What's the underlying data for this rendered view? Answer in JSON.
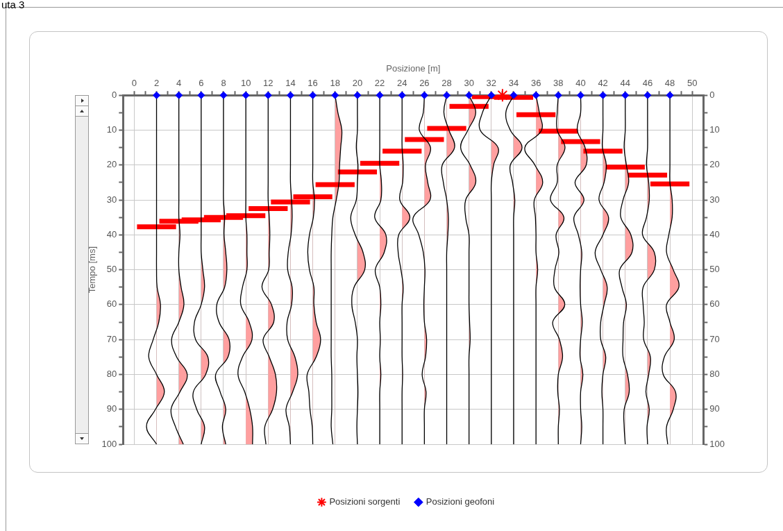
{
  "chart_data": {
    "type": "line",
    "xlabel": "Posizione [m]",
    "ylabel": "Tempo [ms]",
    "annotations": [
      "uta 3"
    ],
    "xlim": [
      -1,
      51
    ],
    "xticks": [
      0,
      {
        "value": 1,
        "label": null
      },
      2,
      {
        "value": 3,
        "label": null
      },
      4,
      {
        "value": 5,
        "label": null
      },
      6,
      {
        "value": 7,
        "label": null
      },
      8,
      {
        "value": 9,
        "label": null
      },
      10,
      {
        "value": 11,
        "label": null
      },
      12,
      {
        "value": 13,
        "label": null
      },
      14,
      {
        "value": 15,
        "label": null
      },
      16,
      {
        "value": 17,
        "label": null
      },
      18,
      {
        "value": 19,
        "label": null
      },
      20,
      {
        "value": 21,
        "label": null
      },
      22,
      {
        "value": 23,
        "label": null
      },
      24,
      {
        "value": 25,
        "label": null
      },
      26,
      {
        "value": 27,
        "label": null
      },
      28,
      {
        "value": 29,
        "label": null
      },
      30,
      {
        "value": 31,
        "label": null
      },
      32,
      {
        "value": 33,
        "label": null
      },
      34,
      {
        "value": 35,
        "label": null
      },
      36,
      {
        "value": 37,
        "label": null
      },
      38,
      {
        "value": 39,
        "label": null
      },
      40,
      {
        "value": 41,
        "label": null
      },
      42,
      {
        "value": 43,
        "label": null
      },
      44,
      {
        "value": 45,
        "label": null
      },
      46,
      {
        "value": 47,
        "label": null
      },
      48,
      {
        "value": 49,
        "label": null
      },
      50
    ],
    "ylim": [
      100,
      0
    ],
    "yticks": [
      0,
      {
        "value": 5,
        "label": null
      },
      10,
      {
        "value": 15,
        "label": null
      },
      20,
      {
        "value": 25,
        "label": null
      },
      30,
      {
        "value": 35,
        "label": null
      },
      40,
      {
        "value": 45,
        "label": null
      },
      50,
      {
        "value": 55,
        "label": null
      },
      60,
      {
        "value": 65,
        "label": null
      },
      70,
      {
        "value": 75,
        "label": null
      },
      80,
      {
        "value": 85,
        "label": null
      },
      90,
      {
        "value": 95,
        "label": null
      },
      100
    ],
    "y2lim": [
      100,
      0
    ],
    "y2ticks": [
      0,
      {
        "value": 5,
        "label": null
      },
      10,
      {
        "value": 15,
        "label": null
      },
      20,
      {
        "value": 25,
        "label": null
      },
      30,
      {
        "value": 35,
        "label": null
      },
      40,
      {
        "value": 45,
        "label": null
      },
      50,
      {
        "value": 55,
        "label": null
      },
      60,
      {
        "value": 65,
        "label": null
      },
      70,
      {
        "value": 75,
        "label": null
      },
      80,
      {
        "value": 85,
        "label": null
      },
      90,
      {
        "value": 95,
        "label": null
      },
      100
    ],
    "grid": true,
    "legend": "bottom",
    "line_style": "solid",
    "series": [
      {
        "color": "#ff0000",
        "x": [
          0.25,
          3.75,
          null,
          2.25,
          5.75,
          null,
          4.25,
          7.75,
          null,
          6.25,
          9.75,
          null,
          8.25,
          11.75,
          null,
          10.25,
          13.75,
          null,
          12.25,
          15.75,
          null,
          14.25,
          17.75,
          null,
          16.25,
          19.75,
          null,
          18.25,
          21.75,
          null,
          20.25,
          23.75,
          null,
          22.25,
          25.75,
          null,
          24.25,
          27.75,
          null,
          26.25,
          29.75,
          null,
          28.25,
          31.75,
          null,
          30.25,
          33.75,
          null,
          32.25,
          35.75,
          null,
          34.25,
          37.75,
          null,
          36.25,
          39.75,
          null,
          38.25,
          41.75,
          null,
          40.25,
          43.75,
          null,
          42.25,
          45.75,
          null,
          44.25,
          47.75,
          null,
          46.25,
          49.75
        ],
        "values": [
          37.7,
          37.7,
          null,
          36.1,
          36.1,
          null,
          35.7,
          35.7,
          null,
          35.0,
          35.0,
          null,
          34.5,
          34.5,
          null,
          32.5,
          32.5,
          null,
          30.6,
          30.6,
          null,
          29.1,
          29.1,
          null,
          25.6,
          25.6,
          null,
          22.0,
          22.0,
          null,
          19.5,
          19.5,
          null,
          16.0,
          16.0,
          null,
          12.7,
          12.7,
          null,
          9.5,
          9.5,
          null,
          3.2,
          3.2,
          null,
          0.4,
          0.4,
          null,
          0.6,
          0.6,
          null,
          5.6,
          5.6,
          null,
          10.3,
          10.3,
          null,
          13.3,
          13.3,
          null,
          16.0,
          16.0,
          null,
          20.6,
          20.6,
          null,
          22.9,
          22.9,
          null,
          25.4,
          25.4
        ]
      },
      {
        "color": "#000000",
        "x": [
          2,
          2,
          2,
          2,
          2,
          2,
          2,
          2,
          2,
          2,
          2,
          2.05,
          2.35,
          2.2,
          1.7,
          1.3,
          2,
          2.7,
          1.9,
          1.1,
          2
        ],
        "values": [
          0,
          5,
          10,
          15,
          20,
          25,
          30,
          35,
          40,
          45,
          50,
          55,
          60,
          65,
          70,
          75,
          80,
          85,
          90,
          95,
          100
        ]
      },
      {
        "color": "#000000",
        "x": [
          4,
          4,
          4,
          4,
          4,
          4,
          4,
          4,
          4.1,
          4,
          4,
          4.2,
          4.45,
          4,
          3.35,
          3.8,
          4.75,
          4.1,
          3.3,
          3.7,
          4.4
        ],
        "values": [
          0,
          5,
          10,
          15,
          20,
          25,
          30,
          35,
          40,
          45,
          50,
          55,
          60,
          65,
          70,
          75,
          80,
          85,
          90,
          95,
          100
        ]
      },
      {
        "color": "#000000",
        "x": [
          6,
          6,
          6,
          6,
          6,
          6,
          6,
          6,
          6,
          6,
          6.15,
          6.3,
          6,
          5.4,
          5.5,
          6.6,
          6.4,
          5.3,
          5.6,
          6.3,
          6
        ],
        "values": [
          0,
          5,
          10,
          15,
          20,
          25,
          30,
          35,
          40,
          45,
          50,
          55,
          60,
          65,
          70,
          75,
          80,
          85,
          90,
          95,
          100
        ]
      },
      {
        "color": "#000000",
        "x": [
          8,
          8,
          8,
          8,
          8,
          8,
          8,
          8.1,
          8.05,
          8.2,
          8.3,
          8.1,
          7.4,
          7.6,
          8.5,
          8.4,
          7.3,
          7.7,
          8.2,
          7.9,
          8.2
        ],
        "values": [
          0,
          5,
          10,
          15,
          20,
          25,
          30,
          35,
          40,
          45,
          50,
          55,
          60,
          65,
          70,
          75,
          80,
          85,
          90,
          95,
          100
        ]
      },
      {
        "color": "#000000",
        "x": [
          10,
          10,
          10,
          10,
          10,
          10,
          10,
          10,
          10.1,
          10.1,
          10.1,
          9.7,
          9.55,
          10.3,
          10.55,
          9.7,
          9.3,
          9.9,
          10.35,
          10.6,
          10.6
        ],
        "values": [
          0,
          5,
          10,
          15,
          20,
          25,
          30,
          35,
          40,
          45,
          50,
          55,
          60,
          65,
          70,
          75,
          80,
          85,
          90,
          95,
          100
        ]
      },
      {
        "color": "#000000",
        "x": [
          12,
          12,
          12,
          12,
          12,
          12,
          12,
          12.1,
          12.15,
          12.1,
          12.05,
          11.45,
          12.3,
          12.5,
          11.55,
          12.1,
          12.65,
          12.75,
          12.4,
          11.7,
          11.8
        ],
        "values": [
          0,
          5,
          10,
          15,
          20,
          25,
          30,
          35,
          40,
          45,
          50,
          55,
          60,
          65,
          70,
          75,
          80,
          85,
          90,
          95,
          100
        ]
      },
      {
        "color": "#000000",
        "x": [
          14,
          14,
          14,
          14,
          14,
          14,
          14.1,
          14.15,
          14.05,
          13.8,
          13.75,
          14.15,
          14.1,
          13.7,
          13.75,
          14.4,
          14.65,
          14.2,
          13.6,
          13.9,
          14
        ],
        "values": [
          0,
          5,
          10,
          15,
          20,
          25,
          30,
          35,
          40,
          45,
          50,
          55,
          60,
          65,
          70,
          75,
          80,
          85,
          90,
          95,
          100
        ]
      },
      {
        "color": "#000000",
        "x": [
          16,
          16,
          16,
          16,
          16,
          16,
          16.15,
          16.05,
          15.7,
          15.55,
          15.7,
          16.1,
          16.1,
          16.3,
          16.7,
          16.3,
          15.5,
          15.65,
          15.75,
          15.95,
          16
        ],
        "values": [
          0,
          5,
          10,
          15,
          20,
          25,
          30,
          35,
          40,
          45,
          50,
          55,
          60,
          65,
          70,
          75,
          80,
          85,
          90,
          95,
          100
        ]
      },
      {
        "color": "#000000",
        "x": [
          18,
          18.25,
          18.6,
          18.5,
          18.4,
          18.35,
          18.1,
          17.8,
          17.7,
          17.65,
          17.65,
          17.65,
          17.65,
          17.65,
          17.65,
          17.65,
          17.7,
          17.7,
          17.7,
          17.65,
          17.8
        ],
        "values": [
          0,
          5,
          10,
          15,
          20,
          25,
          30,
          35,
          40,
          45,
          50,
          55,
          60,
          65,
          70,
          75,
          80,
          85,
          90,
          95,
          100
        ]
      },
      {
        "color": "#000000",
        "x": [
          20,
          20,
          20,
          19.9,
          20.05,
          20,
          19.9,
          19.4,
          19.8,
          20.5,
          20.65,
          19.7,
          19.5,
          19.8,
          20,
          19.95,
          20,
          20.05,
          20,
          19.95,
          20
        ],
        "values": [
          0,
          5,
          10,
          15,
          20,
          25,
          30,
          35,
          40,
          45,
          50,
          55,
          60,
          65,
          70,
          75,
          80,
          85,
          90,
          95,
          100
        ]
      },
      {
        "color": "#000000",
        "x": [
          22,
          22,
          22,
          22,
          22,
          22.15,
          22.1,
          21.55,
          22.55,
          22.4,
          21.6,
          22,
          22.1,
          22,
          22.05,
          22,
          22.1,
          22,
          22,
          22,
          22
        ],
        "values": [
          0,
          5,
          10,
          15,
          20,
          25,
          30,
          35,
          40,
          45,
          50,
          55,
          60,
          65,
          70,
          75,
          80,
          85,
          90,
          95,
          100
        ]
      },
      {
        "color": "#000000",
        "x": [
          24,
          24,
          24,
          24,
          24.1,
          24.05,
          23.8,
          24.7,
          23.7,
          23.65,
          23.9,
          24.1,
          24,
          24,
          24,
          24,
          24.05,
          24,
          24,
          24,
          24
        ],
        "values": [
          0,
          5,
          10,
          15,
          20,
          25,
          30,
          35,
          40,
          45,
          50,
          55,
          60,
          65,
          70,
          75,
          80,
          85,
          90,
          95,
          100
        ]
      },
      {
        "color": "#000000",
        "x": [
          26,
          25.9,
          25.55,
          26.55,
          26.1,
          26.3,
          26.5,
          25,
          25.5,
          25.9,
          26.05,
          26,
          25.95,
          26,
          26.2,
          26.1,
          25.8,
          26.15,
          26,
          26,
          26
        ],
        "values": [
          0,
          5,
          10,
          15,
          20,
          25,
          30,
          35,
          40,
          45,
          50,
          55,
          60,
          65,
          70,
          75,
          80,
          85,
          90,
          95,
          100
        ]
      },
      {
        "color": "#000000",
        "x": [
          28,
          27.75,
          28.2,
          28.7,
          27.6,
          27.7,
          28,
          28.15,
          28.1,
          28,
          28,
          28,
          28,
          28,
          28,
          28,
          28,
          28,
          28,
          28,
          28
        ],
        "values": [
          0,
          5,
          10,
          15,
          20,
          25,
          30,
          35,
          40,
          45,
          50,
          55,
          60,
          65,
          70,
          75,
          80,
          85,
          90,
          95,
          100
        ]
      },
      {
        "color": "#000000",
        "x": [
          30,
          30.6,
          29.9,
          29.25,
          30.1,
          30.6,
          29.7,
          29.7,
          30,
          30,
          30,
          30,
          30,
          30.05,
          30.1,
          30,
          30,
          30,
          30,
          30,
          30
        ],
        "values": [
          0,
          5,
          10,
          15,
          20,
          25,
          30,
          35,
          40,
          45,
          50,
          55,
          60,
          65,
          70,
          75,
          80,
          85,
          90,
          95,
          100
        ]
      },
      {
        "color": "#000000",
        "x": [
          32,
          31.2,
          31,
          32.6,
          32.2,
          32,
          32,
          32,
          32,
          32,
          32,
          32,
          32,
          32,
          32,
          32,
          32,
          32,
          32,
          32,
          32
        ],
        "values": [
          0,
          5,
          10,
          15,
          20,
          25,
          30,
          35,
          40,
          45,
          50,
          55,
          60,
          65,
          70,
          75,
          80,
          85,
          90,
          95,
          100
        ]
      },
      {
        "color": "#000000",
        "x": [
          34,
          33.3,
          33.7,
          34.75,
          33.7,
          33.9,
          34.1,
          34,
          34,
          34,
          34,
          34,
          34,
          34,
          34,
          34,
          34,
          34,
          34,
          34,
          34
        ],
        "values": [
          0,
          5,
          10,
          15,
          20,
          25,
          30,
          35,
          40,
          45,
          50,
          55,
          60,
          65,
          70,
          75,
          80,
          85,
          90,
          95,
          100
        ]
      },
      {
        "color": "#000000",
        "x": [
          36,
          36.3,
          36.5,
          35,
          35.9,
          36.6,
          35.85,
          35.95,
          36,
          36,
          36.15,
          36,
          36,
          36,
          36,
          36,
          36,
          36,
          36,
          36,
          36
        ],
        "values": [
          0,
          5,
          10,
          15,
          20,
          25,
          30,
          35,
          40,
          45,
          50,
          55,
          60,
          65,
          70,
          75,
          80,
          85,
          90,
          95,
          100
        ]
      },
      {
        "color": "#000000",
        "x": [
          38,
          37.9,
          37.9,
          38.6,
          37.9,
          37.9,
          37.3,
          38.5,
          37.8,
          38.05,
          37.7,
          37.65,
          38.58,
          37.5,
          38.1,
          38.38,
          38,
          37.95,
          38.1,
          38,
          38
        ],
        "values": [
          0,
          5,
          10,
          15,
          20,
          25,
          30,
          35,
          40,
          45,
          50,
          55,
          60,
          65,
          70,
          75,
          80,
          85,
          90,
          95,
          100
        ]
      },
      {
        "color": "#000000",
        "x": [
          40,
          40,
          39.7,
          40.4,
          40.5,
          39.5,
          40.3,
          39.4,
          39.8,
          40.1,
          40,
          39.95,
          40,
          40.15,
          40,
          39.95,
          40.2,
          40,
          40,
          40.1,
          40
        ],
        "values": [
          0,
          5,
          10,
          15,
          20,
          25,
          30,
          35,
          40,
          45,
          50,
          55,
          60,
          65,
          70,
          75,
          80,
          85,
          90,
          95,
          100
        ]
      },
      {
        "color": "#000000",
        "x": [
          42,
          42,
          42,
          41.95,
          42.3,
          42.1,
          41.65,
          42.5,
          42,
          41.3,
          41.8,
          42.38,
          42.1,
          41.8,
          41.8,
          42.25,
          42,
          41.9,
          42,
          42,
          42
        ],
        "values": [
          0,
          5,
          10,
          15,
          20,
          25,
          30,
          35,
          40,
          45,
          50,
          55,
          60,
          65,
          70,
          75,
          80,
          85,
          90,
          95,
          100
        ]
      },
      {
        "color": "#000000",
        "x": [
          44,
          44,
          44,
          43.9,
          44.1,
          44.3,
          43.8,
          43.6,
          44.5,
          44.6,
          43.5,
          43.7,
          44.1,
          43.85,
          43.8,
          43.8,
          44.2,
          44.35,
          43.9,
          43.9,
          44
        ],
        "values": [
          0,
          5,
          10,
          15,
          20,
          25,
          30,
          35,
          40,
          45,
          50,
          55,
          60,
          65,
          70,
          75,
          80,
          85,
          90,
          95,
          100
        ]
      },
      {
        "color": "#000000",
        "x": [
          46,
          46,
          46,
          46,
          45.9,
          46.1,
          46.15,
          45.9,
          45.55,
          46.6,
          46.6,
          45.6,
          45.6,
          45.7,
          45.65,
          46.25,
          46.1,
          45.85,
          46.15,
          45.95,
          46
        ],
        "values": [
          0,
          5,
          10,
          15,
          20,
          25,
          30,
          35,
          40,
          45,
          50,
          55,
          60,
          65,
          70,
          75,
          80,
          85,
          90,
          95,
          100
        ]
      },
      {
        "color": "#000000",
        "x": [
          48,
          48,
          48,
          48,
          48,
          48,
          48.2,
          48.2,
          47.9,
          47.7,
          48.3,
          48.8,
          47.7,
          48,
          48.38,
          47.5,
          47.4,
          48.5,
          48.3,
          47.7,
          47.8
        ],
        "values": [
          0,
          5,
          10,
          15,
          20,
          25,
          30,
          35,
          40,
          45,
          50,
          55,
          60,
          65,
          70,
          75,
          80,
          85,
          90,
          95,
          100
        ]
      },
      {
        "type": "scatter",
        "name": "Posizioni sorgenti",
        "color": "#ff0000",
        "marker": "cross",
        "x": [
          33
        ],
        "values": [
          0
        ]
      },
      {
        "type": "scatter",
        "name": "Posizioni geofoni",
        "color": "#0000ff",
        "marker": "diamond",
        "x": [
          2,
          4,
          6,
          8,
          10,
          12,
          14,
          16,
          18,
          20,
          22,
          24,
          26,
          28,
          30,
          32,
          34,
          36,
          38,
          40,
          42,
          44,
          46,
          48
        ],
        "values": [
          0,
          0,
          0,
          0,
          0,
          0,
          0,
          0,
          0,
          0,
          0,
          0,
          0,
          0,
          0,
          0,
          0,
          0,
          0,
          0,
          0,
          0,
          0,
          0
        ]
      }
    ]
  }
}
